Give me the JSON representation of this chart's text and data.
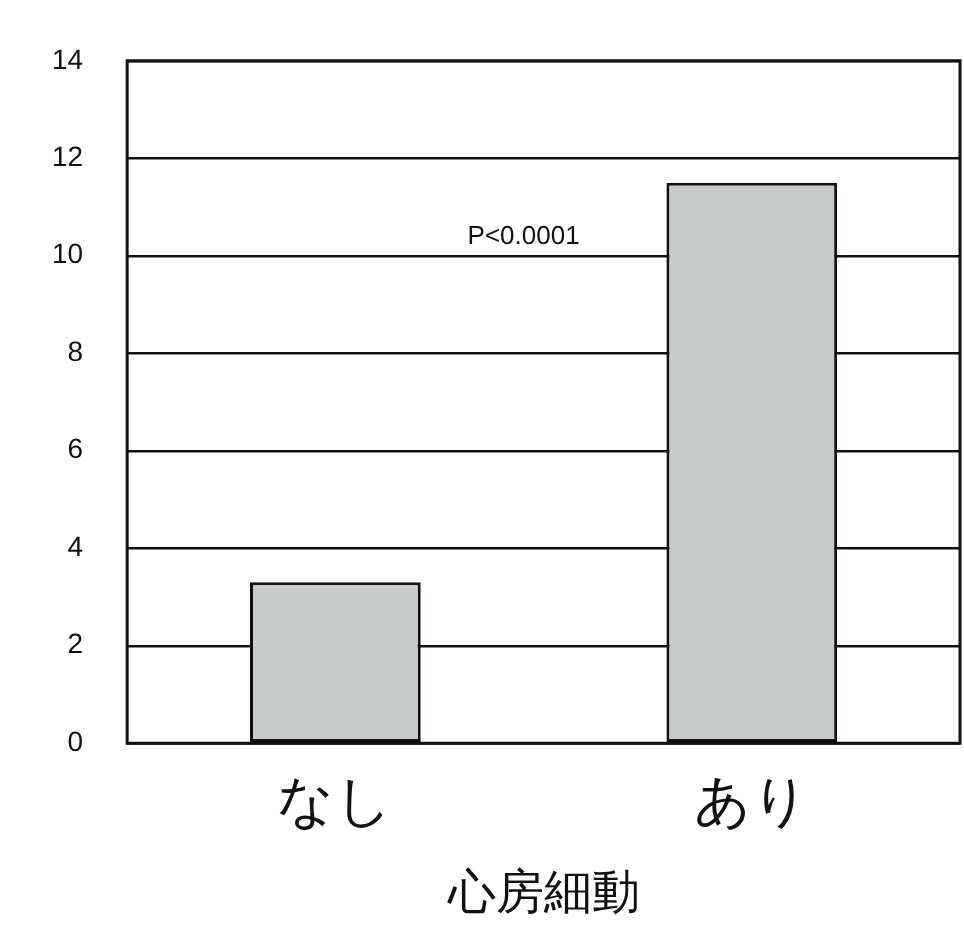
{
  "chart_data": {
    "type": "bar",
    "xlabel": "心房細動",
    "categories": [
      "なし",
      "あり"
    ],
    "values": [
      3.3,
      11.5
    ],
    "color": "#c8cbcc",
    "ylim": [
      0,
      14
    ],
    "yticks": [
      0,
      2,
      4,
      6,
      8,
      10,
      12,
      14
    ],
    "grid": "y",
    "annotations": [
      "P<0.0001"
    ]
  }
}
